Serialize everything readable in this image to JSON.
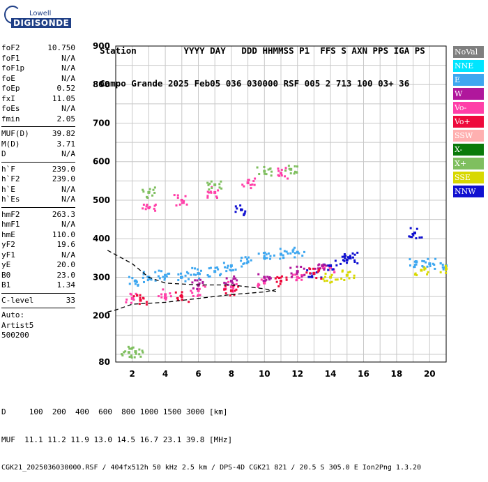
{
  "logo": {
    "top": "Lowell",
    "main": "DIGISONDE"
  },
  "header": {
    "labels": [
      "Station",
      "YYYY",
      "DAY",
      "DDD",
      "HHMMSS",
      "P1",
      "FFS",
      "S",
      "AXN",
      "PPS",
      "IGA",
      "PS"
    ],
    "values": [
      "Campo Grande",
      "2025",
      "Feb05",
      "036",
      "030000",
      "RSF",
      "005",
      "2",
      "713",
      "100",
      "03+",
      "36"
    ]
  },
  "sidebar": {
    "group1": [
      {
        "k": "foF2",
        "v": "10.750"
      },
      {
        "k": "foF1",
        "v": "N/A"
      },
      {
        "k": "foF1p",
        "v": "N/A"
      },
      {
        "k": "foE",
        "v": "N/A"
      },
      {
        "k": "foEp",
        "v": "0.52"
      },
      {
        "k": "fxI",
        "v": "11.05"
      },
      {
        "k": "foEs",
        "v": "N/A"
      },
      {
        "k": "fmin",
        "v": "2.05"
      }
    ],
    "group2": [
      {
        "k": "MUF(D)",
        "v": "39.82"
      },
      {
        "k": "M(D)",
        "v": "3.71"
      },
      {
        "k": "D",
        "v": "N/A"
      }
    ],
    "group3": [
      {
        "k": "h`F",
        "v": "239.0"
      },
      {
        "k": "h`F2",
        "v": "239.0"
      },
      {
        "k": "h`E",
        "v": "N/A"
      },
      {
        "k": "h`Es",
        "v": "N/A"
      }
    ],
    "group4": [
      {
        "k": "hmF2",
        "v": "263.3"
      },
      {
        "k": "hmF1",
        "v": "N/A"
      },
      {
        "k": "hmE",
        "v": "110.0"
      },
      {
        "k": "yF2",
        "v": "19.6"
      },
      {
        "k": "yF1",
        "v": "N/A"
      },
      {
        "k": "yE",
        "v": "20.0"
      },
      {
        "k": "B0",
        "v": "23.0"
      },
      {
        "k": "B1",
        "v": "1.34"
      }
    ],
    "group5": [
      {
        "k": "C-level",
        "v": "33"
      }
    ],
    "plain": [
      "Auto:",
      "Artist5",
      "500200"
    ]
  },
  "legend": [
    {
      "label": "NoVal",
      "color": "#7f7f7f"
    },
    {
      "label": "NNE",
      "color": "#00e5ff"
    },
    {
      "label": "E",
      "color": "#3ea7f0"
    },
    {
      "label": "W",
      "color": "#b0179c"
    },
    {
      "label": "Vo-",
      "color": "#ff3fa8"
    },
    {
      "label": "Vo+",
      "color": "#ee0a3c"
    },
    {
      "label": "SSW",
      "color": "#ffb0b0"
    },
    {
      "label": "X-",
      "color": "#0a7a0a"
    },
    {
      "label": "X+",
      "color": "#7fbf5f"
    },
    {
      "label": "SSE",
      "color": "#d8d800"
    },
    {
      "label": "NNW",
      "color": "#1010d0"
    }
  ],
  "footer": {
    "line1": "D     100  200  400  600  800 1000 1500 3000 [km]",
    "line2": "MUF  11.1 11.2 11.9 13.0 14.5 16.7 23.1 39.8 [MHz]",
    "line3": "CGK21_2025036030000.RSF / 404fx512h 50 kHz 2.5 km / DPS-4D CGK21 821 / 20.5 S 305.0 E Ion2Png 1.3.20"
  },
  "chart_data": {
    "type": "scatter",
    "title": "",
    "xlabel": "",
    "ylabel": "",
    "xlim": [
      1,
      21
    ],
    "ylim": [
      80,
      900
    ],
    "x_ticks": [
      2,
      4,
      6,
      8,
      10,
      12,
      14,
      16,
      18,
      20
    ],
    "y_ticks": [
      80,
      200,
      300,
      400,
      500,
      600,
      700,
      800,
      900
    ],
    "grid": true,
    "legend_placement": "right",
    "series": [
      {
        "name": "E",
        "color": "#3ea7f0",
        "points": [
          [
            2.2,
            290
          ],
          [
            3,
            300
          ],
          [
            4,
            305
          ],
          [
            5,
            300
          ],
          [
            6,
            310
          ],
          [
            7,
            315
          ],
          [
            8,
            330
          ],
          [
            9,
            340
          ],
          [
            10,
            350
          ],
          [
            11,
            360
          ],
          [
            12,
            365
          ],
          [
            19.2,
            340
          ],
          [
            20,
            335
          ],
          [
            21,
            330
          ]
        ]
      },
      {
        "name": "Vo-",
        "color": "#ff3fa8",
        "points": [
          [
            2,
            245
          ],
          [
            4,
            255
          ],
          [
            6,
            265
          ],
          [
            8,
            275
          ],
          [
            10,
            285
          ],
          [
            12,
            300
          ],
          [
            14,
            325
          ],
          [
            3,
            480
          ],
          [
            5,
            500
          ],
          [
            7,
            520
          ],
          [
            9,
            545
          ],
          [
            11,
            570
          ]
        ]
      },
      {
        "name": "NNW",
        "color": "#1010d0",
        "points": [
          [
            13,
            310
          ],
          [
            14,
            330
          ],
          [
            15,
            345
          ],
          [
            15.2,
            350
          ],
          [
            8.6,
            475
          ],
          [
            19.1,
            415
          ]
        ]
      },
      {
        "name": "W",
        "color": "#b0179c",
        "points": [
          [
            6,
            280
          ],
          [
            8,
            290
          ],
          [
            10,
            300
          ],
          [
            12,
            315
          ],
          [
            13.5,
            330
          ]
        ]
      },
      {
        "name": "Vo+",
        "color": "#ee0a3c",
        "points": [
          [
            2.5,
            240
          ],
          [
            5,
            250
          ],
          [
            8,
            265
          ],
          [
            11,
            290
          ],
          [
            13,
            310
          ]
        ]
      },
      {
        "name": "X+",
        "color": "#7fbf5f",
        "points": [
          [
            1.8,
            105
          ],
          [
            2.2,
            107
          ],
          [
            3,
            520
          ],
          [
            7,
            540
          ],
          [
            10,
            575
          ],
          [
            11.6,
            580
          ]
        ]
      },
      {
        "name": "SSE",
        "color": "#d8d800",
        "points": [
          [
            14,
            300
          ],
          [
            15,
            305
          ],
          [
            19.5,
            318
          ],
          [
            21,
            322
          ]
        ]
      }
    ],
    "profile_curve": [
      [
        0.5,
        370
      ],
      [
        2,
        335
      ],
      [
        3,
        300
      ],
      [
        4,
        285
      ],
      [
        6,
        280
      ],
      [
        8,
        280
      ],
      [
        10,
        270
      ],
      [
        10.7,
        263
      ]
    ],
    "profile_lower": [
      [
        0.5,
        210
      ],
      [
        1,
        215
      ],
      [
        2,
        230
      ],
      [
        4,
        235
      ],
      [
        6,
        245
      ],
      [
        8,
        255
      ],
      [
        10,
        262
      ],
      [
        10.7,
        268
      ]
    ]
  }
}
